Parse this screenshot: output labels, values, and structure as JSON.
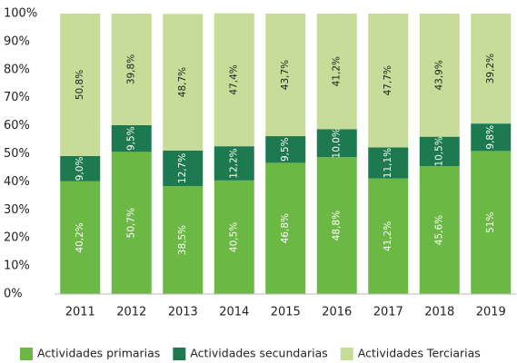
{
  "chart_data": {
    "type": "stacked_bar",
    "categories": [
      "2011",
      "2012",
      "2013",
      "2014",
      "2015",
      "2016",
      "2017",
      "2018",
      "2019"
    ],
    "series": [
      {
        "name": "Actividades primarias",
        "color": "#6cb844",
        "label_color": "#ffffff",
        "values": [
          40.2,
          50.7,
          38.5,
          40.5,
          46.8,
          48.8,
          41.2,
          45.6,
          51
        ],
        "value_labels": [
          "40,2%",
          "50,7%",
          "38,5%",
          "40,5%",
          "46,8%",
          "48,8%",
          "41,2%",
          "45,6%",
          "51%"
        ]
      },
      {
        "name": "Actividades secundarias",
        "color": "#1d7a50",
        "label_color": "#ffffff",
        "values": [
          9.0,
          9.5,
          12.7,
          12.2,
          9.5,
          10.0,
          11.1,
          10.5,
          9.8
        ],
        "value_labels": [
          "9,0%",
          "9,5%",
          "12,7%",
          "12,2%",
          "9,5%",
          "10,0%",
          "11,1%",
          "10,5%",
          "9,8%"
        ]
      },
      {
        "name": "Actividades Terciarias",
        "color": "#c6dc98",
        "label_color": "#222222",
        "values": [
          50.8,
          39.8,
          48.7,
          47.4,
          43.7,
          41.2,
          47.7,
          43.9,
          39.2
        ],
        "value_labels": [
          "50,8%",
          "39,8%",
          "48,7%",
          "47,4%",
          "43,7%",
          "41,2%",
          "47,7%",
          "43,9%",
          "39,2%"
        ]
      }
    ],
    "ylim": [
      0,
      100
    ],
    "yticks": [
      {
        "value": 0,
        "label": "0%"
      },
      {
        "value": 10,
        "label": "10%"
      },
      {
        "value": 20,
        "label": "20%"
      },
      {
        "value": 30,
        "label": "30%"
      },
      {
        "value": 40,
        "label": "40%"
      },
      {
        "value": 50,
        "label": "50%"
      },
      {
        "value": 60,
        "label": "60%"
      },
      {
        "value": 70,
        "label": "70%"
      },
      {
        "value": 80,
        "label": "80%"
      },
      {
        "value": 90,
        "label": "90%"
      },
      {
        "value": 100,
        "label": "100%"
      }
    ],
    "grid": false,
    "legend": "bottom"
  }
}
